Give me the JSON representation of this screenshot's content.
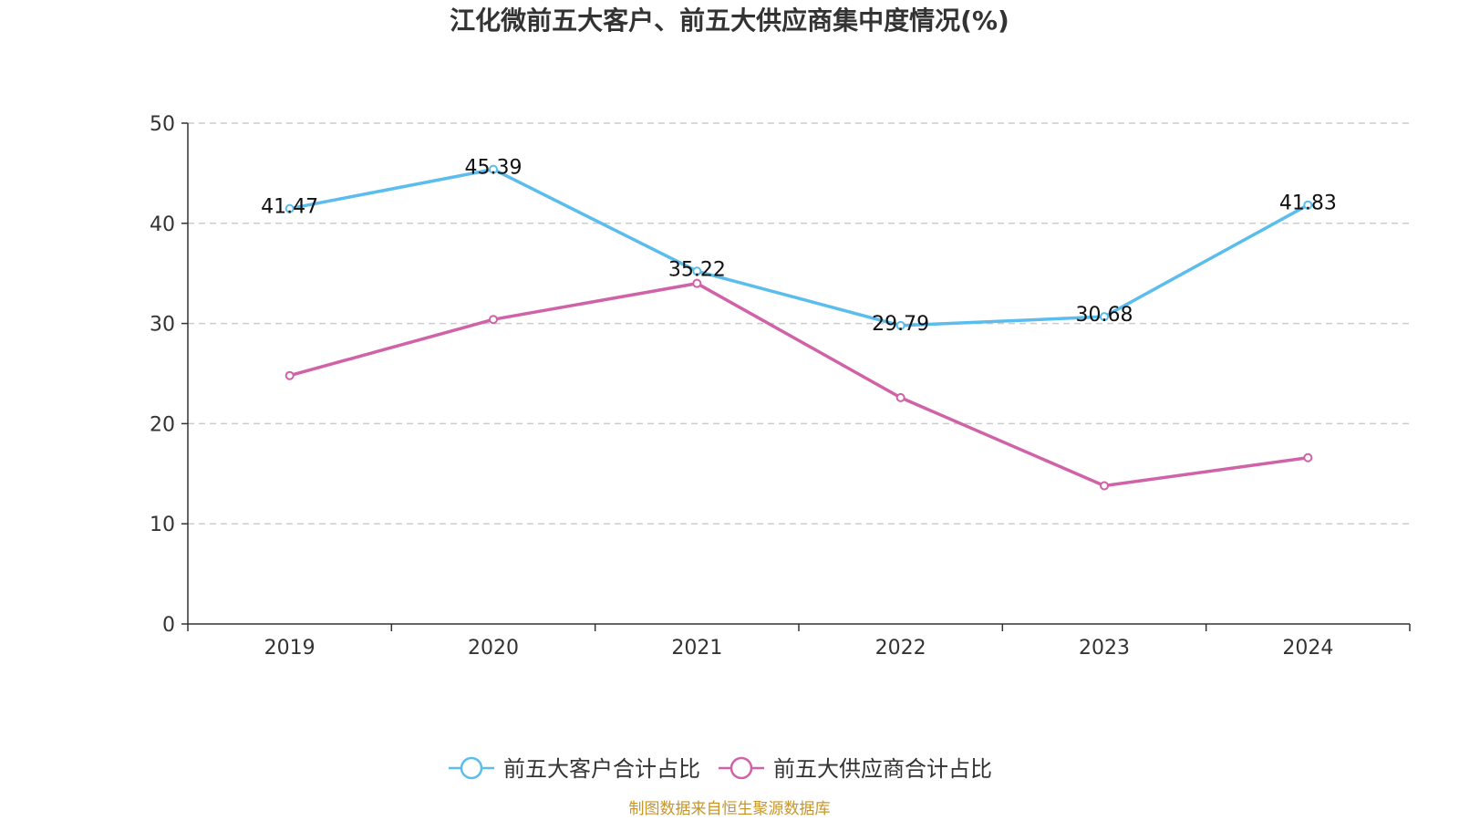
{
  "chart_data": {
    "type": "line",
    "title": "江化微前五大客户、前五大供应商集中度情况(%)",
    "xlabel": "",
    "ylabel": "",
    "categories": [
      "2019",
      "2020",
      "2021",
      "2022",
      "2023",
      "2024"
    ],
    "ylim": [
      0,
      50
    ],
    "yticks": [
      0,
      10,
      20,
      30,
      40,
      50
    ],
    "grid": true,
    "legend_position": "bottom",
    "series": [
      {
        "name": "前五大客户合计占比",
        "color": "#5bbcee",
        "values": [
          41.47,
          45.39,
          35.22,
          29.79,
          30.68,
          41.83
        ],
        "show_labels": true
      },
      {
        "name": "前五大供应商合计占比",
        "color": "#d062a8",
        "values": [
          24.8,
          30.4,
          34.0,
          22.6,
          13.8,
          16.6
        ],
        "show_labels": false
      }
    ]
  },
  "source": "制图数据来自恒生聚源数据库"
}
